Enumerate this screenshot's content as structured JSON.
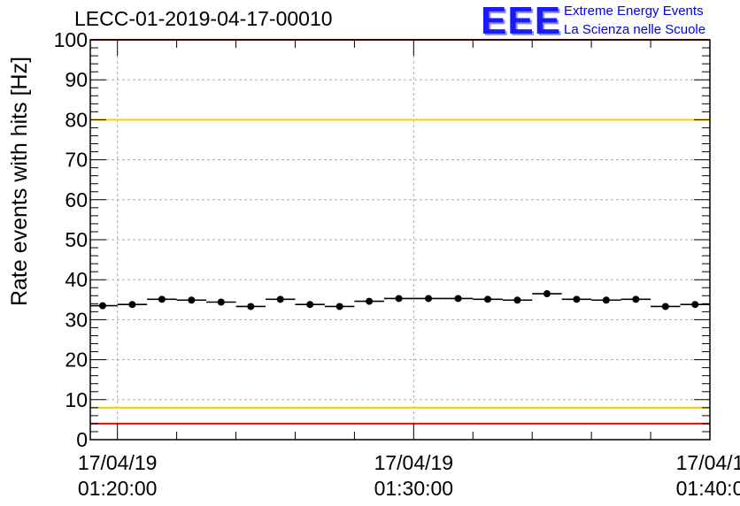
{
  "run_title": "LECC-01-2019-04-17-00010",
  "logo": {
    "mark": "EEE",
    "line1": "Extreme Energy Events",
    "line2": "La Scienza nelle Scuole",
    "color": "#1a1aff"
  },
  "colors": {
    "red_limit": "#ff0000",
    "yellow_limit": "#ffcc00",
    "points": "#000000",
    "grid": "#aaaaaa"
  },
  "chart_data": {
    "type": "scatter",
    "title": "LECC-01-2019-04-17-00010",
    "xlabel": "",
    "ylabel": "Rate events with hits [Hz]",
    "ylim": [
      0,
      100
    ],
    "xlim": [
      "2019-04-17 01:19:05",
      "2019-04-17 01:40:00"
    ],
    "x_tick_labels": [
      {
        "date": "17/04/19",
        "time": "01:20:00"
      },
      {
        "date": "17/04/19",
        "time": "01:30:00"
      },
      {
        "date": "17/04/1",
        "time": "01:40:0"
      }
    ],
    "y_ticks": [
      0,
      10,
      20,
      30,
      40,
      50,
      60,
      70,
      80,
      90,
      100
    ],
    "grid": true,
    "reference_lines": [
      {
        "y": 100,
        "color": "red"
      },
      {
        "y": 80,
        "color": "yellow"
      },
      {
        "y": 8,
        "color": "yellow"
      },
      {
        "y": 4,
        "color": "red"
      }
    ],
    "x_error_minutes": 0.5,
    "x": [
      "01:19:30",
      "01:20:30",
      "01:21:30",
      "01:22:30",
      "01:23:30",
      "01:24:30",
      "01:25:30",
      "01:26:30",
      "01:27:30",
      "01:28:30",
      "01:29:30",
      "01:30:30",
      "01:31:30",
      "01:32:30",
      "01:33:30",
      "01:34:30",
      "01:35:30",
      "01:36:30",
      "01:37:30",
      "01:38:30",
      "01:39:30"
    ],
    "values": [
      33.5,
      33.8,
      35.1,
      34.9,
      34.4,
      33.3,
      35.1,
      33.8,
      33.3,
      34.6,
      35.3,
      35.3,
      35.3,
      35.1,
      34.9,
      36.5,
      35.1,
      34.9,
      35.1,
      33.3,
      33.8
    ]
  }
}
